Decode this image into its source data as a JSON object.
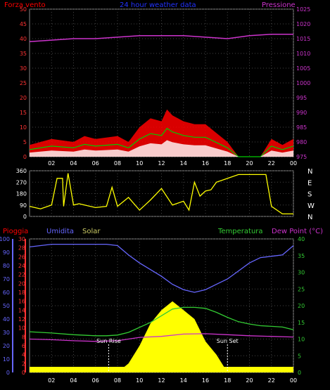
{
  "header": {
    "left_label": "Forza vento",
    "title": "24 hour weather data",
    "right_label": "Pressione"
  },
  "colors": {
    "background": "#000000",
    "wind_gust": "#ff0000",
    "wind_avg": "#00cc00",
    "wind_low": "#ffffff",
    "pressure": "#cc33cc",
    "direction": "#ffff00",
    "rain": "#ff0000",
    "humidity": "#6666ff",
    "solar": "#ffff00",
    "temperature": "#33cc33",
    "dewpoint": "#cc33cc",
    "sun_marker": "#ffffff"
  },
  "chart_data": [
    {
      "type": "line",
      "title": "24 hour weather data",
      "series": [
        {
          "name": "Forza vento",
          "axis": "left",
          "x": [
            0,
            2,
            4,
            5,
            6,
            8,
            9,
            10,
            11,
            12,
            12.5,
            13,
            14,
            15,
            16,
            17,
            18,
            19,
            20,
            21,
            21.5,
            22,
            23,
            24
          ],
          "values": [
            4,
            6,
            5,
            7,
            6,
            7,
            5,
            10,
            13,
            12,
            16,
            14,
            12,
            11,
            11,
            8,
            5,
            0,
            0,
            0,
            3,
            6,
            4,
            6
          ]
        },
        {
          "name": "Pressione",
          "axis": "right",
          "x": [
            0,
            2,
            4,
            6,
            8,
            10,
            12,
            14,
            16,
            18,
            20,
            22,
            24
          ],
          "values": [
            1014,
            1014.5,
            1015,
            1015,
            1015.5,
            1016,
            1016,
            1016,
            1015.5,
            1015,
            1016,
            1016.5,
            1016.5
          ]
        }
      ],
      "x_ticks": [
        "02",
        "04",
        "06",
        "08",
        "10",
        "12",
        "14",
        "16",
        "18",
        "20",
        "22",
        "00"
      ],
      "y_left_ticks": [
        0,
        5,
        10,
        15,
        20,
        25,
        30,
        35,
        40,
        45,
        50
      ],
      "y_right_ticks": [
        975,
        980,
        985,
        990,
        995,
        1000,
        1005,
        1010,
        1015,
        1020,
        1025
      ],
      "ylim_left": [
        0,
        50
      ],
      "ylim_right": [
        975,
        1025
      ],
      "grid": true
    },
    {
      "type": "line",
      "series": [
        {
          "name": "direction",
          "x": [
            0,
            1,
            2,
            2.5,
            3,
            3.1,
            3.5,
            4,
            4.5,
            5,
            6,
            7,
            7.5,
            8,
            9,
            10,
            10.5,
            11,
            12,
            13,
            14,
            14.5,
            15,
            15.5,
            16,
            16.5,
            17,
            19,
            20,
            21,
            21.5,
            22,
            23,
            24
          ],
          "values": [
            80,
            60,
            90,
            300,
            300,
            80,
            340,
            90,
            100,
            90,
            70,
            80,
            230,
            80,
            150,
            50,
            90,
            130,
            220,
            90,
            120,
            50,
            270,
            160,
            200,
            210,
            270,
            330,
            330,
            330,
            330,
            80,
            20,
            20
          ]
        }
      ],
      "y_ticks": [
        0,
        90,
        180,
        270,
        360
      ],
      "y_right_labels": [
        "N",
        "W",
        "S",
        "E",
        "N"
      ],
      "ylim": [
        0,
        360
      ],
      "grid": true
    },
    {
      "type": "line",
      "labels": {
        "rain": "Pioggia",
        "humidity": "Umidita",
        "solar": "Solar",
        "temperature": "Temperatura",
        "dewpoint": "Dew Point (°C)"
      },
      "series": [
        {
          "name": "Umidita",
          "axis": "left_outer",
          "x": [
            0,
            1,
            2,
            4,
            6,
            7,
            8,
            9,
            10,
            11,
            12,
            13,
            14,
            15,
            16,
            17,
            18,
            19,
            20,
            21,
            22,
            23,
            24
          ],
          "values": [
            94,
            95,
            96,
            96,
            96,
            96,
            95,
            88,
            82,
            77,
            72,
            66,
            62,
            60,
            62,
            66,
            70,
            76,
            82,
            86,
            87,
            88,
            95
          ]
        },
        {
          "name": "Solar",
          "axis": "left_inner",
          "x": [
            8,
            9,
            10,
            11,
            12,
            13,
            14,
            15,
            16,
            17,
            18,
            19
          ],
          "values": [
            0,
            2,
            6,
            11,
            14,
            16,
            14,
            12,
            7,
            4,
            0,
            0
          ]
        },
        {
          "name": "Temperatura",
          "axis": "right",
          "x": [
            0,
            2,
            4,
            6,
            7,
            8,
            9,
            10,
            11,
            12,
            13,
            14,
            15,
            16,
            17,
            18,
            19,
            20,
            21,
            22,
            23,
            24
          ],
          "values": [
            12.2,
            11.8,
            11.3,
            11.0,
            11.0,
            11.2,
            12,
            13.5,
            15,
            17,
            19,
            19.5,
            19.5,
            19.2,
            18,
            16.5,
            15.2,
            14.5,
            14,
            13.8,
            13.6,
            12.8
          ]
        },
        {
          "name": "Dew Point (°C)",
          "axis": "right",
          "x": [
            0,
            2,
            4,
            6,
            8,
            10,
            12,
            14,
            16,
            18,
            20,
            22,
            24
          ],
          "values": [
            10,
            9.8,
            9.5,
            9.3,
            9.5,
            10.5,
            10.8,
            11.5,
            11.6,
            11.3,
            11.0,
            10.8,
            10.6
          ]
        }
      ],
      "annotations": [
        "Sun Rise",
        "Sun Set"
      ],
      "sun_rise_x": 7.2,
      "sun_set_x": 18.0,
      "y_left_outer_ticks": [
        0,
        10,
        20,
        30,
        40,
        50,
        60,
        70,
        80,
        90,
        100
      ],
      "y_left_inner_ticks": [
        0,
        2,
        4,
        6,
        8,
        10,
        12,
        14,
        16,
        18,
        20,
        22,
        24,
        26,
        28,
        30
      ],
      "y_right_ticks": [
        0,
        5,
        10,
        15,
        20,
        25,
        30,
        35,
        40
      ],
      "x_ticks": [
        "02",
        "04",
        "06",
        "08",
        "10",
        "12",
        "14",
        "16",
        "18",
        "20",
        "22",
        "00"
      ],
      "grid": true
    }
  ]
}
